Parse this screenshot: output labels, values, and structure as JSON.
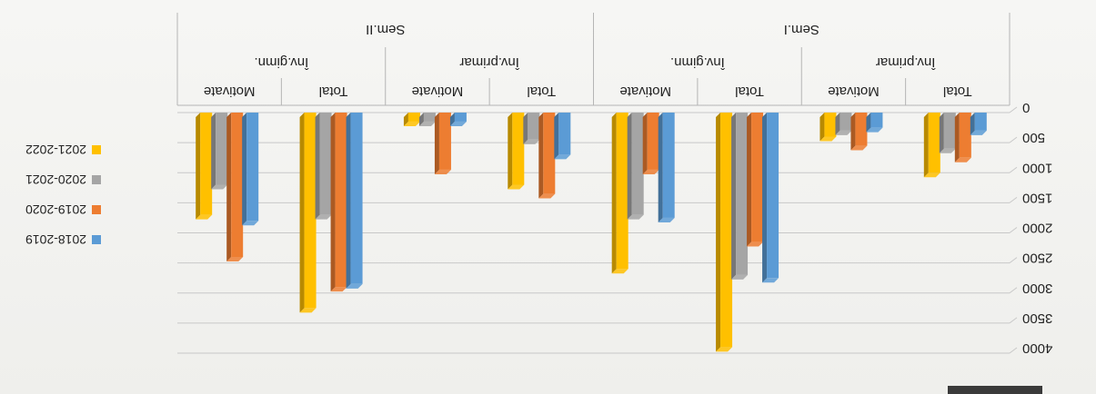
{
  "chart_data": {
    "type": "bar",
    "orientation": "rotated-180",
    "groups": [
      {
        "label": "Sem.I",
        "subgroups": [
          {
            "label": "Înv.primar",
            "categories": [
              "Total",
              "Motivate"
            ]
          },
          {
            "label": "Înv.gimn.",
            "categories": [
              "Total",
              "Motivate"
            ]
          }
        ]
      },
      {
        "label": "Sem.II",
        "subgroups": [
          {
            "label": "Înv.primar",
            "categories": [
              "Total",
              "Motivate"
            ]
          },
          {
            "label": "Înv.gimn.",
            "categories": [
              "Total",
              "Motivate"
            ]
          }
        ]
      }
    ],
    "categories": [
      "Sem.I / Înv.primar / Total",
      "Sem.I / Înv.primar / Motivate",
      "Sem.I / Înv.gimn. / Total",
      "Sem.I / Înv.gimn. / Motivate",
      "Sem.II / Înv.primar / Total",
      "Sem.II / Înv.primar / Motivate",
      "Sem.II / Înv.gimn. / Total",
      "Sem.II / Înv.gimn. / Motivate"
    ],
    "series": [
      {
        "name": "2018-2019",
        "color": "#5b9bd5",
        "values": [
          300,
          250,
          2750,
          1750,
          700,
          150,
          2850,
          1800
        ]
      },
      {
        "name": "2019-2020",
        "color": "#ed7d31",
        "values": [
          750,
          550,
          2150,
          950,
          1350,
          950,
          2900,
          2400
        ]
      },
      {
        "name": "2020-2021",
        "color": "#a5a5a5",
        "values": [
          600,
          300,
          2700,
          1700,
          450,
          150,
          1700,
          1200
        ]
      },
      {
        "name": "2021-2022",
        "color": "#ffc000",
        "values": [
          1000,
          400,
          3900,
          2600,
          1200,
          150,
          3250,
          1700
        ]
      }
    ],
    "ylim": [
      0,
      4000
    ],
    "yticks": [
      "0",
      "500",
      "1000",
      "1500",
      "2000",
      "2500",
      "3000",
      "3500",
      "4000"
    ],
    "grid": true,
    "legend_position": "right"
  }
}
